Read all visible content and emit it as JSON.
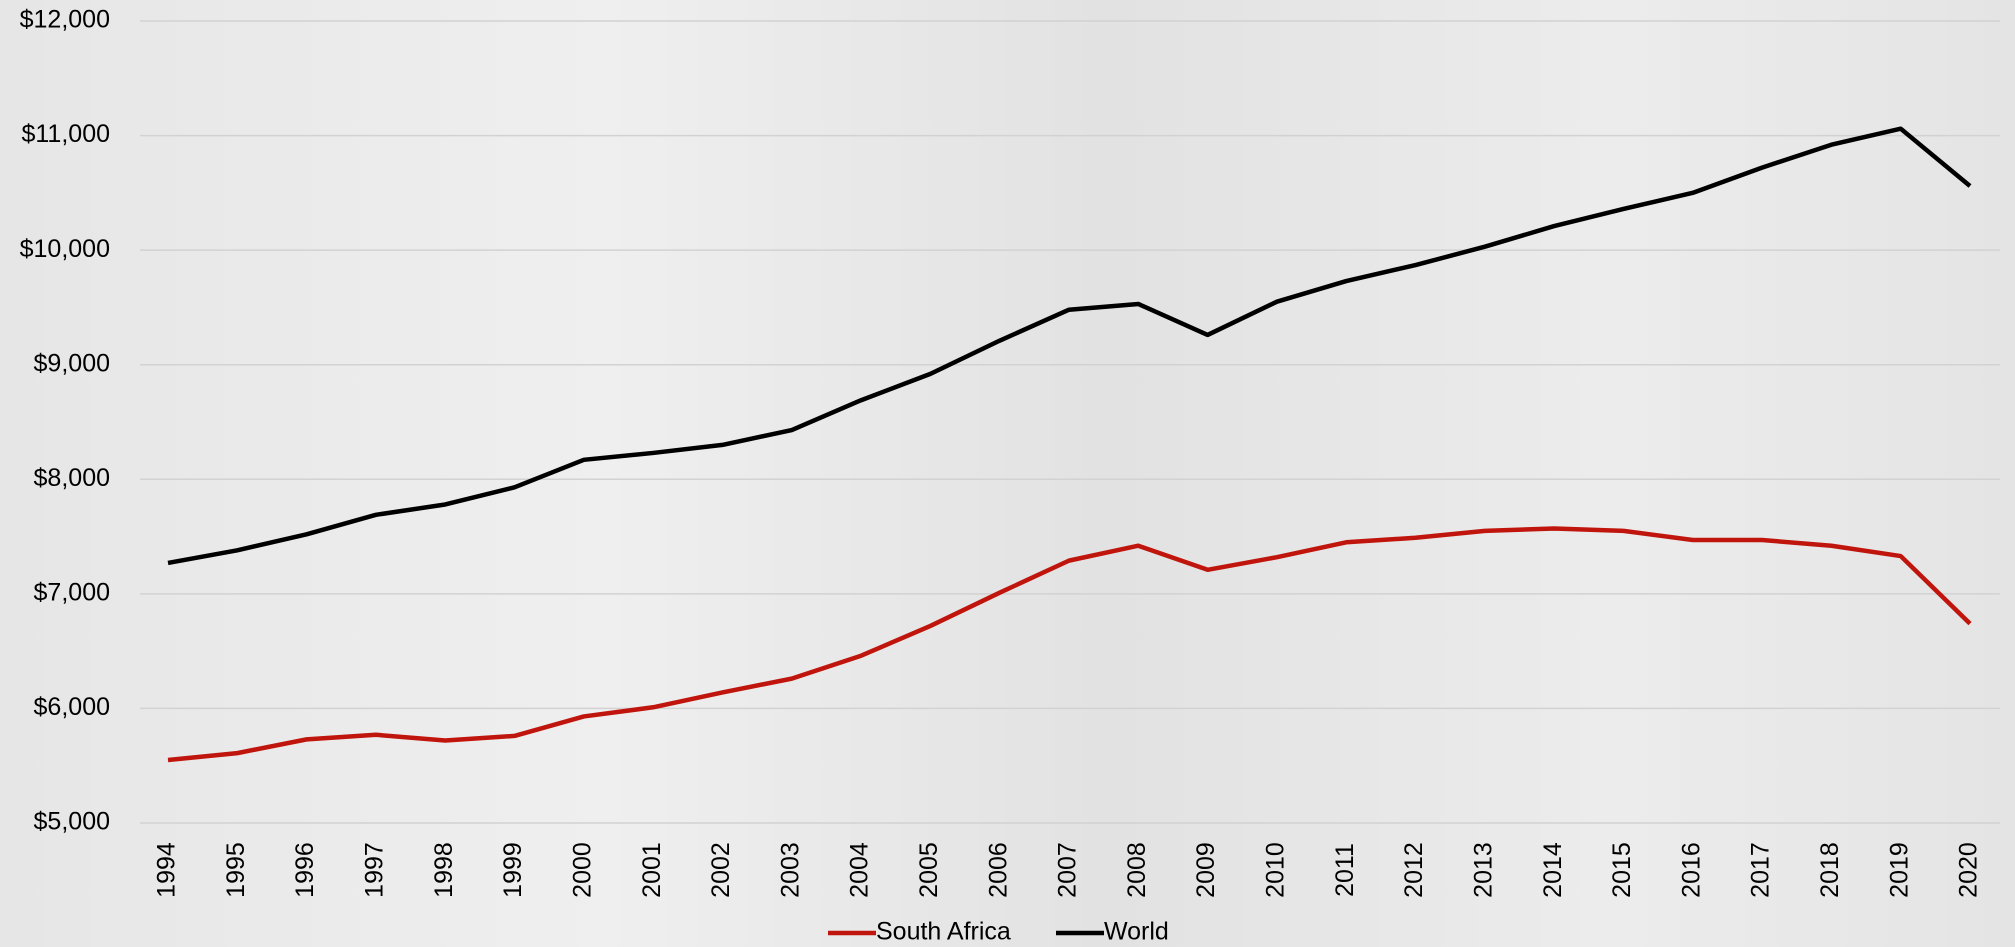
{
  "chart_data": {
    "type": "line",
    "categories": [
      "1994",
      "1995",
      "1996",
      "1997",
      "1998",
      "1999",
      "2000",
      "2001",
      "2002",
      "2003",
      "2004",
      "2005",
      "2006",
      "2007",
      "2008",
      "2009",
      "2010",
      "2011",
      "2012",
      "2013",
      "2014",
      "2015",
      "2016",
      "2017",
      "2018",
      "2019",
      "2020"
    ],
    "series": [
      {
        "name": "South Africa",
        "color": "#c0150c",
        "values": [
          5550,
          5610,
          5730,
          5770,
          5720,
          5760,
          5930,
          6010,
          6140,
          6260,
          6460,
          6720,
          7010,
          7290,
          7420,
          7210,
          7320,
          7450,
          7490,
          7550,
          7570,
          7550,
          7470,
          7470,
          7420,
          7330,
          6740
        ]
      },
      {
        "name": "World",
        "color": "#000000",
        "values": [
          7270,
          7380,
          7520,
          7690,
          7780,
          7930,
          8170,
          8230,
          8300,
          8430,
          8690,
          8920,
          9210,
          9480,
          9530,
          9260,
          9550,
          9730,
          9870,
          10030,
          10210,
          10360,
          10500,
          10720,
          10920,
          11060,
          10560
        ]
      }
    ],
    "ylim": [
      5000,
      12000
    ],
    "yticks": [
      {
        "value": 5000,
        "label": "$5,000"
      },
      {
        "value": 6000,
        "label": "$6,000"
      },
      {
        "value": 7000,
        "label": "$7,000"
      },
      {
        "value": 8000,
        "label": "$8,000"
      },
      {
        "value": 9000,
        "label": "$9,000"
      },
      {
        "value": 10000,
        "label": "$10,000"
      },
      {
        "value": 11000,
        "label": "$11,000"
      },
      {
        "value": 12000,
        "label": "$12,000"
      }
    ],
    "grid": true,
    "legend": "bottom"
  }
}
